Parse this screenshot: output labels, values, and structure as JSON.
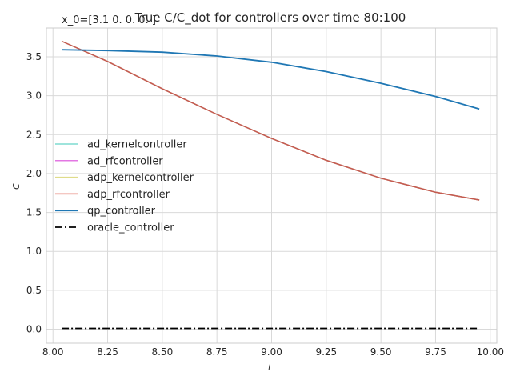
{
  "chart_data": {
    "type": "line",
    "title": "True C/C_dot for controllers over time 80:100",
    "corner_text": "x_0=[3.1 0.  0.  0. ]",
    "xlabel": "t",
    "ylabel": "C",
    "xlim": [
      7.97,
      10.03
    ],
    "ylim": [
      -0.18,
      3.87
    ],
    "xticks": [
      8.0,
      8.25,
      8.5,
      8.75,
      9.0,
      9.25,
      9.5,
      9.75,
      10.0
    ],
    "xtick_labels": [
      "8.00",
      "8.25",
      "8.50",
      "8.75",
      "9.00",
      "9.25",
      "9.50",
      "9.75",
      "10.00"
    ],
    "yticks": [
      0.0,
      0.5,
      1.0,
      1.5,
      2.0,
      2.5,
      3.0,
      3.5
    ],
    "ytick_labels": [
      "0.0",
      "0.5",
      "1.0",
      "1.5",
      "2.0",
      "2.5",
      "3.0",
      "3.5"
    ],
    "grid": true,
    "legend_position": "center-left",
    "x": [
      8.04,
      8.25,
      8.5,
      8.75,
      9.0,
      9.25,
      9.5,
      9.75,
      9.95
    ],
    "series": [
      {
        "name": "ad_kernelcontroller",
        "color": "#7fdbd0",
        "style": "solid",
        "width": 1.5,
        "values": [
          3.7,
          3.44,
          3.09,
          2.76,
          2.45,
          2.17,
          1.94,
          1.76,
          1.66
        ]
      },
      {
        "name": "ad_rfcontroller",
        "color": "#e377e3",
        "style": "solid",
        "width": 1.5,
        "values": [
          3.7,
          3.44,
          3.09,
          2.76,
          2.45,
          2.17,
          1.94,
          1.76,
          1.66
        ]
      },
      {
        "name": "adp_kernelcontroller",
        "color": "#dfdc8a",
        "style": "solid",
        "width": 1.5,
        "values": [
          3.7,
          3.44,
          3.09,
          2.76,
          2.45,
          2.17,
          1.94,
          1.76,
          1.66
        ]
      },
      {
        "name": "adp_rfcontroller",
        "color": "#e06a5e",
        "style": "solid",
        "width": 1.5,
        "values": [
          3.7,
          3.44,
          3.09,
          2.76,
          2.45,
          2.17,
          1.94,
          1.76,
          1.66
        ]
      },
      {
        "name": "qp_controller",
        "color": "#1f77b4",
        "style": "solid",
        "width": 1.8,
        "values": [
          3.59,
          3.58,
          3.56,
          3.51,
          3.43,
          3.31,
          3.16,
          2.99,
          2.83
        ]
      },
      {
        "name": "oracle_controller",
        "color": "#000000",
        "style": "dashdot",
        "width": 1.8,
        "values": [
          0.01,
          0.01,
          0.01,
          0.01,
          0.01,
          0.01,
          0.01,
          0.01,
          0.01
        ]
      }
    ],
    "overlap_color": "#c55a50"
  }
}
